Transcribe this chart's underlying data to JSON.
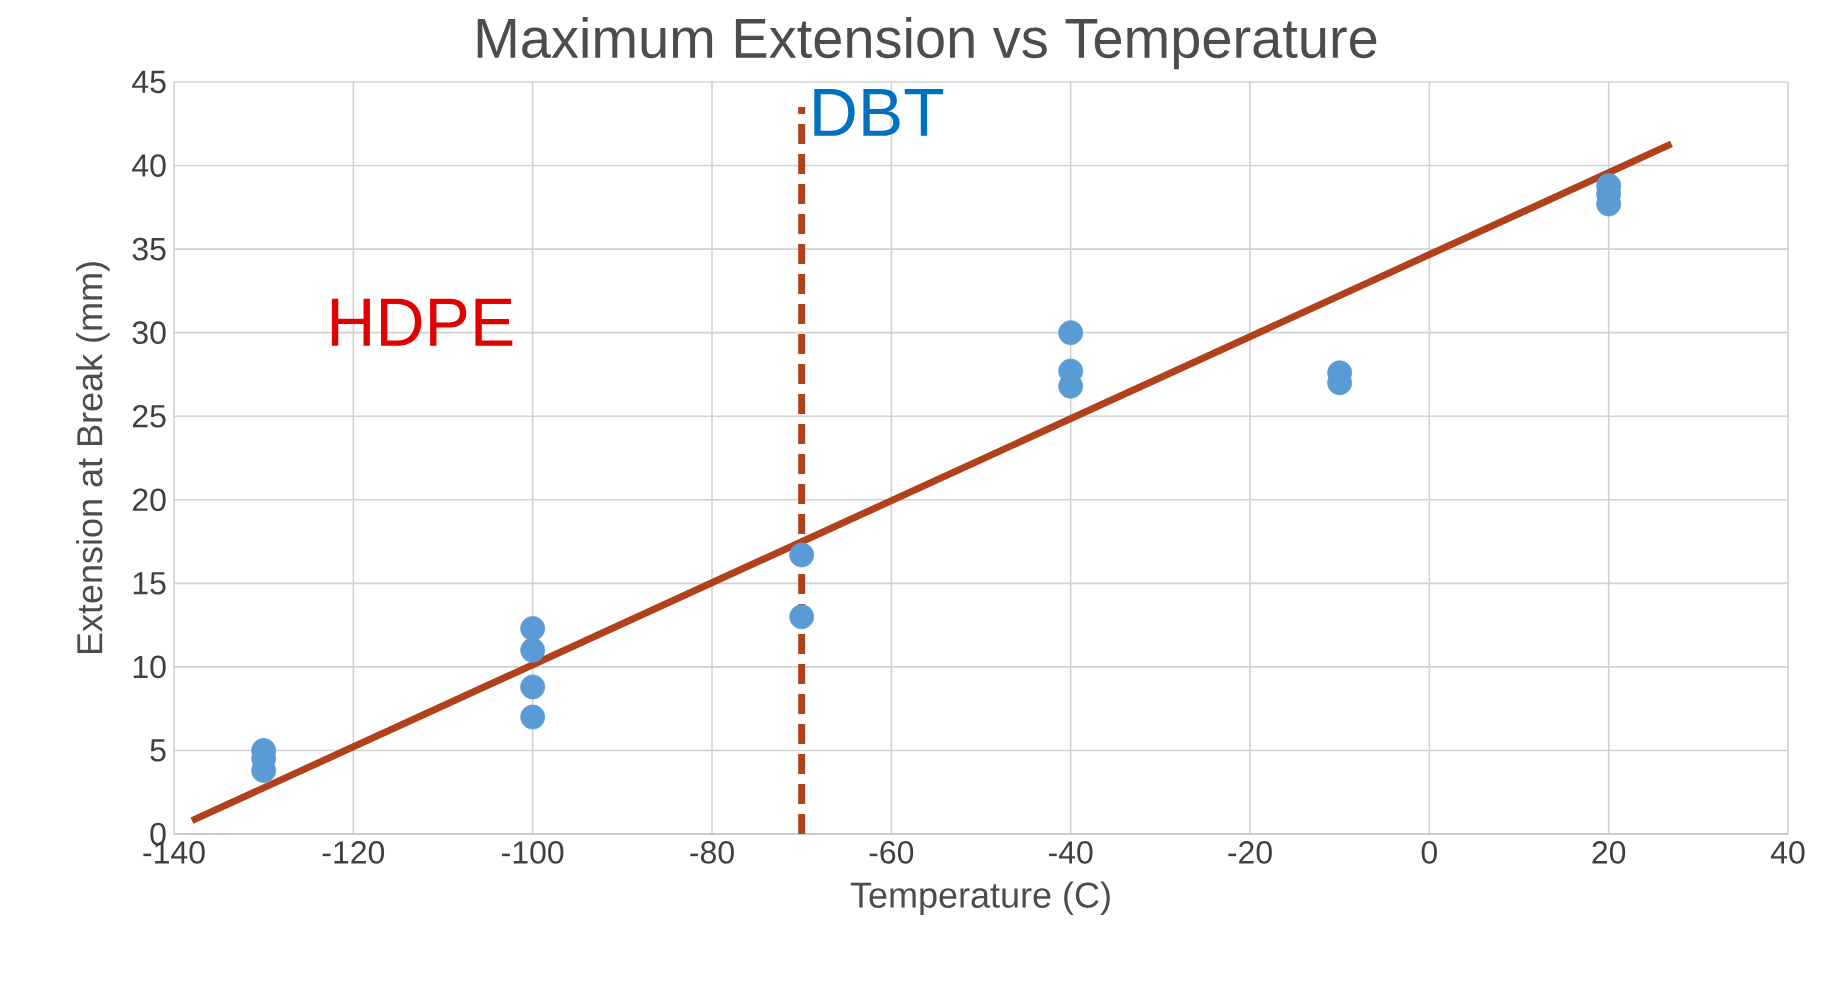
{
  "chart_data": {
    "type": "scatter",
    "title": "Maximum Extension vs Temperature",
    "xlabel": "Temperature (C)",
    "ylabel": "Extension at Break (mm)",
    "series": [
      {
        "color": "#5b9bd5",
        "marker": "circle",
        "x": [
          -130,
          -130,
          -130,
          -100,
          -100,
          -100,
          -100,
          -70,
          -70,
          -40,
          -40,
          -40,
          -10,
          -10,
          20,
          20,
          20
        ],
        "values": [
          5,
          4.5,
          3.8,
          12.3,
          11,
          8.8,
          7,
          16.7,
          13,
          30,
          27.7,
          26.8,
          27.6,
          27,
          38.8,
          38.3,
          37.7
        ]
      },
      {
        "type": "line",
        "color": "#b0411a",
        "marker": "none",
        "line_style": "solid",
        "x": [
          -138,
          27
        ],
        "values": [
          0.8,
          41.3
        ]
      }
    ],
    "ref_lines": [
      {
        "axis": "x",
        "value": -70,
        "label": "DBT",
        "color": "#b0411a",
        "line_style": "dashed"
      }
    ],
    "annotations": [
      "HDPE"
    ],
    "xlim": [
      -140,
      40
    ],
    "ylim": [
      0,
      45
    ],
    "xticks": [
      -140,
      -120,
      -100,
      -80,
      -60,
      -40,
      -20,
      0,
      20,
      40
    ],
    "yticks": [
      0,
      5,
      10,
      15,
      20,
      25,
      30,
      35,
      40,
      45
    ],
    "grid": true
  }
}
